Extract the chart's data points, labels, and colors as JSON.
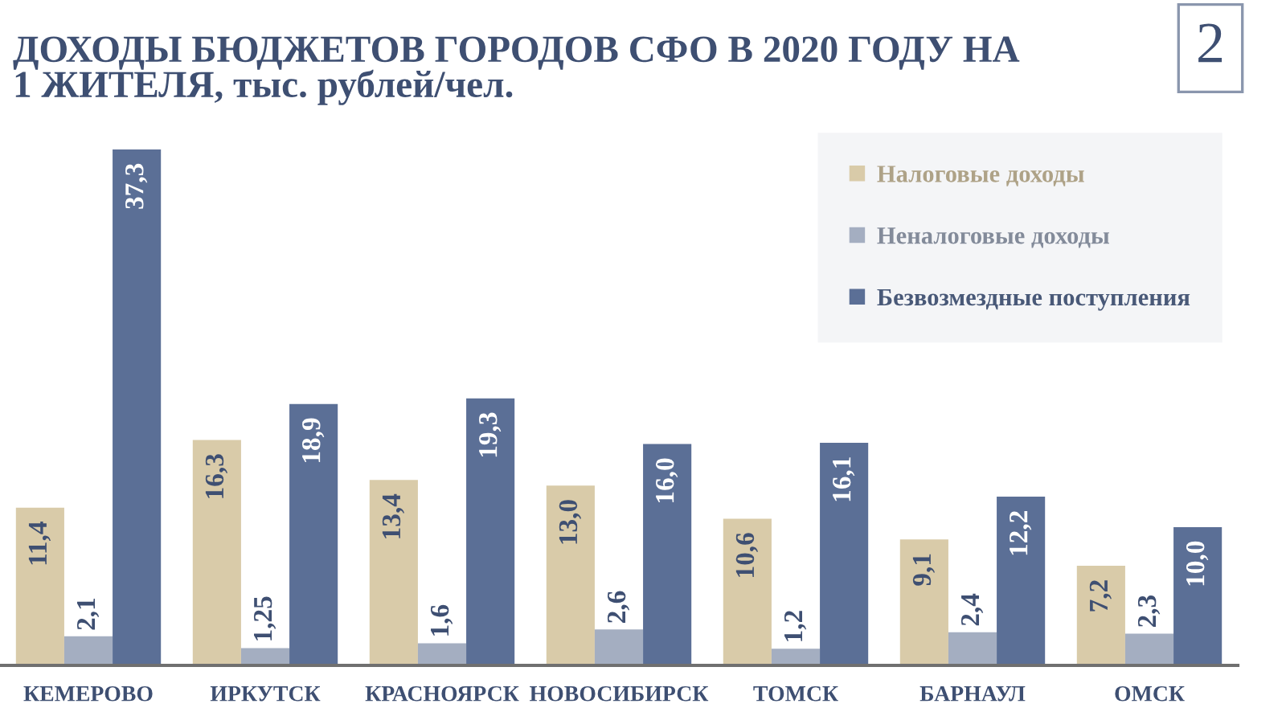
{
  "chart_data": {
    "type": "bar",
    "title": "ДОХОДЫ БЮДЖЕТОВ ГОРОДОВ СФО В 2020 ГОДУ НА\n1 ЖИТЕЛЯ, тыс. рублей/чел.",
    "annotations": [
      "2"
    ],
    "categories": [
      "КЕМЕРОВО",
      "ИРКУТСК",
      "КРАСНОЯРСК",
      "НОВОСИБИРСК",
      "ТОМСК",
      "БАРНАУЛ",
      "ОМСК"
    ],
    "series": [
      {
        "name": "Налоговые доходы",
        "color": "#d9cba9",
        "values": [
          11.4,
          16.3,
          13.4,
          13.0,
          10.6,
          9.1,
          7.2
        ],
        "value_labels": [
          "11,4",
          "16,3",
          "13,4",
          "13,0",
          "10,6",
          "9,1",
          "7,2"
        ]
      },
      {
        "name": "Неналоговые доходы",
        "color": "#a4aec1",
        "values": [
          2.1,
          1.25,
          1.6,
          2.6,
          1.2,
          2.4,
          2.3
        ],
        "value_labels": [
          "2,1",
          "1,25",
          "1,6",
          "2,6",
          "1,2",
          "2,4",
          "2,3"
        ]
      },
      {
        "name": "Безвозмездные поступления",
        "color": "#5b6f96",
        "values": [
          37.3,
          18.9,
          19.3,
          16.0,
          16.1,
          12.2,
          10.0
        ],
        "value_labels": [
          "37,3",
          "18,9",
          "19,3",
          "16,0",
          "16,1",
          "12,2",
          "10,0"
        ]
      }
    ],
    "legend": "top right",
    "tick_labels": "x"
  }
}
